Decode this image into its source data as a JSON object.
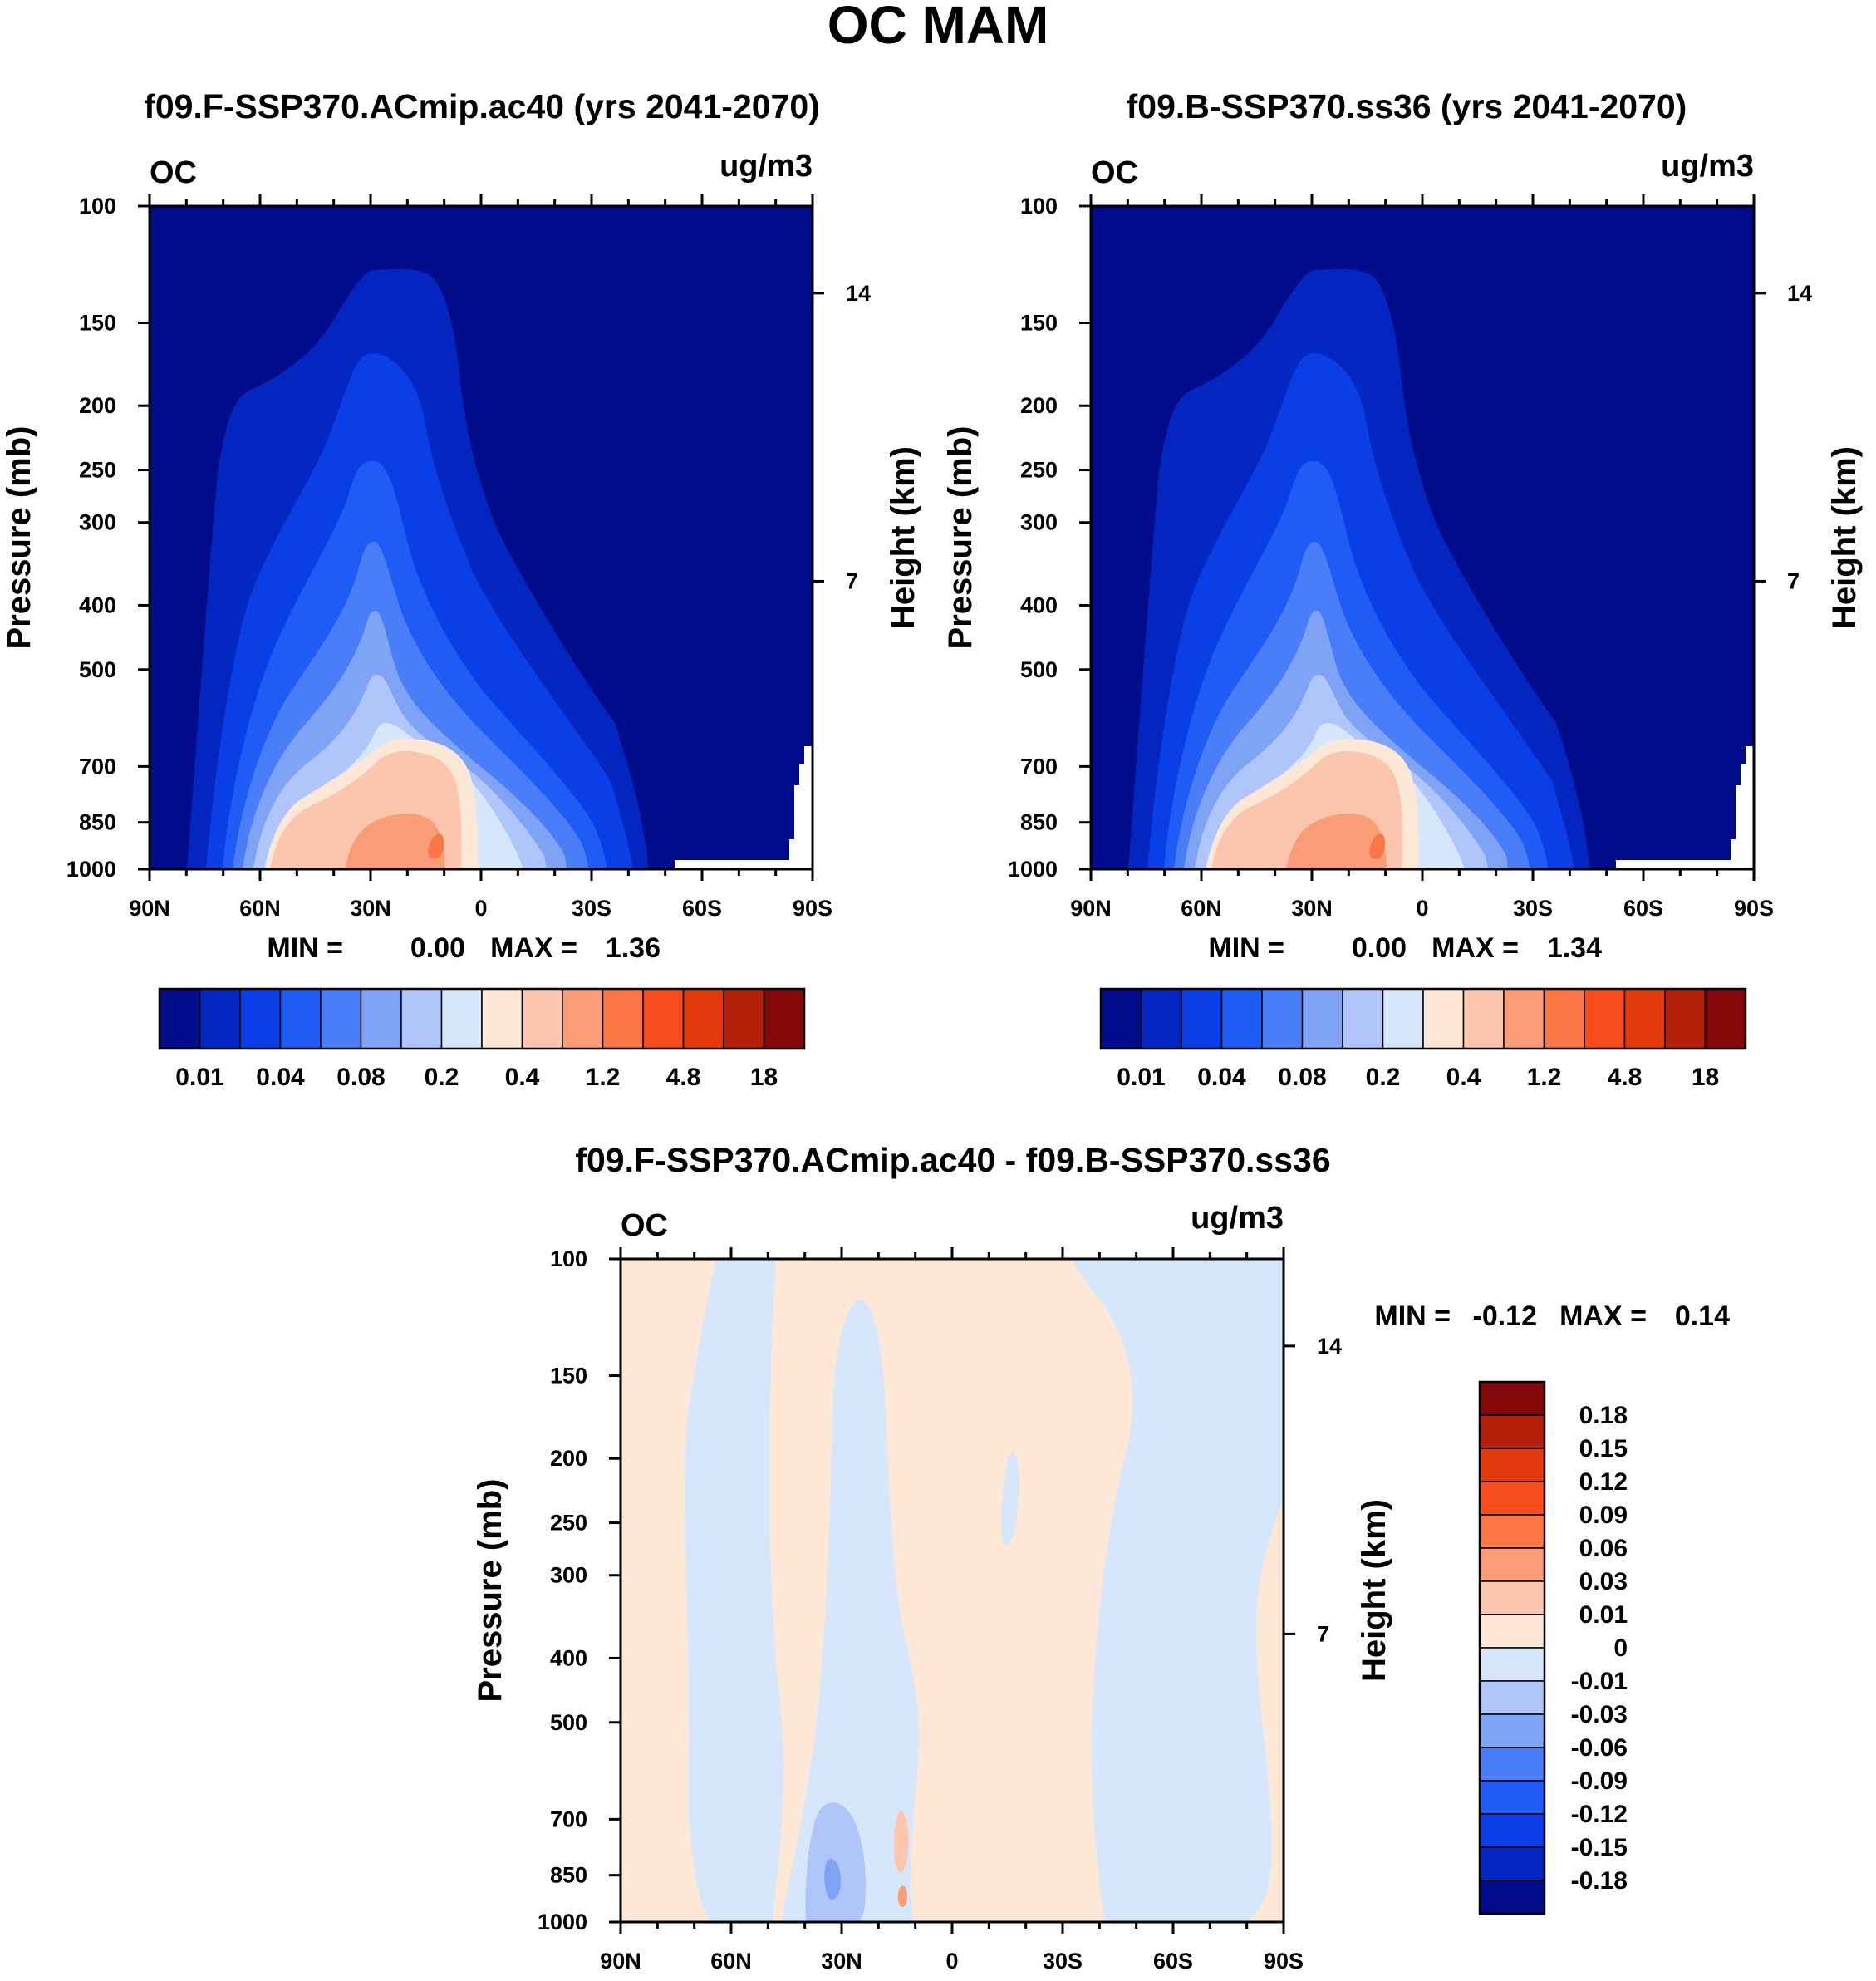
{
  "figure_title": "OC MAM",
  "colors": {
    "seq_palette": [
      "#000c8a",
      "#0226bf",
      "#0a3ee6",
      "#1f5cf5",
      "#4a7ef8",
      "#7fa3f5",
      "#b0c6fa",
      "#d6e6fb",
      "#fde7d6",
      "#fcc5ad",
      "#fa9c76",
      "#fb7645",
      "#f74c1e",
      "#e23a0c",
      "#b3210b",
      "#84070a"
    ],
    "diff_palette": [
      "#000c8a",
      "#0226bf",
      "#0a3ee6",
      "#1f5cf5",
      "#4a7ef8",
      "#7fa3f5",
      "#b0c6fa",
      "#d6e6fb",
      "#fde7d6",
      "#fcc5ad",
      "#fa9c76",
      "#fb7645",
      "#f74c1e",
      "#e23a0c",
      "#b3210b",
      "#84070a"
    ]
  },
  "chart_data": [
    {
      "type": "heatmap",
      "title": "f09.F-SSP370.ACmip.ac40 (yrs 2041-2070)",
      "variable": "OC",
      "units": "ug/m3",
      "xlabel": "",
      "ylabel": "Pressure (mb)",
      "y2label": "Height (km)",
      "x_ticks": [
        "90N",
        "60N",
        "30N",
        "0",
        "30S",
        "60S",
        "90S"
      ],
      "y_ticks": [
        100,
        150,
        200,
        250,
        300,
        400,
        500,
        700,
        850,
        1000
      ],
      "y2_ticks": [
        14,
        7
      ],
      "xlim": [
        90,
        -90
      ],
      "ylim": [
        1000,
        100
      ],
      "min": "0.00",
      "max": "1.36",
      "colorbar_labels": [
        "0.01",
        "0.04",
        "0.08",
        "0.2",
        "0.4",
        "1.2",
        "4.8",
        "18"
      ],
      "n_levels": 16
    },
    {
      "type": "heatmap",
      "title": "f09.B-SSP370.ss36 (yrs 2041-2070)",
      "variable": "OC",
      "units": "ug/m3",
      "xlabel": "",
      "ylabel": "Pressure (mb)",
      "y2label": "Height (km)",
      "x_ticks": [
        "90N",
        "60N",
        "30N",
        "0",
        "30S",
        "60S",
        "90S"
      ],
      "y_ticks": [
        100,
        150,
        200,
        250,
        300,
        400,
        500,
        700,
        850,
        1000
      ],
      "y2_ticks": [
        14,
        7
      ],
      "xlim": [
        90,
        -90
      ],
      "ylim": [
        1000,
        100
      ],
      "min": "0.00",
      "max": "1.34",
      "colorbar_labels": [
        "0.01",
        "0.04",
        "0.08",
        "0.2",
        "0.4",
        "1.2",
        "4.8",
        "18"
      ],
      "n_levels": 16
    },
    {
      "type": "heatmap",
      "title": "f09.F-SSP370.ACmip.ac40 - f09.B-SSP370.ss36",
      "variable": "OC",
      "units": "ug/m3",
      "xlabel": "",
      "ylabel": "Pressure (mb)",
      "y2label": "Height (km)",
      "x_ticks": [
        "90N",
        "60N",
        "30N",
        "0",
        "30S",
        "60S",
        "90S"
      ],
      "y_ticks": [
        100,
        150,
        200,
        250,
        300,
        400,
        500,
        700,
        850,
        1000
      ],
      "y2_ticks": [
        14,
        7
      ],
      "xlim": [
        90,
        -90
      ],
      "ylim": [
        1000,
        100
      ],
      "min": "-0.12",
      "max": "0.14",
      "colorbar_labels": [
        "0.18",
        "0.15",
        "0.12",
        "0.09",
        "0.06",
        "0.03",
        "0.01",
        "0",
        "-0.01",
        "-0.03",
        "-0.06",
        "-0.09",
        "-0.12",
        "-0.15",
        "-0.18"
      ],
      "n_levels": 16
    }
  ]
}
